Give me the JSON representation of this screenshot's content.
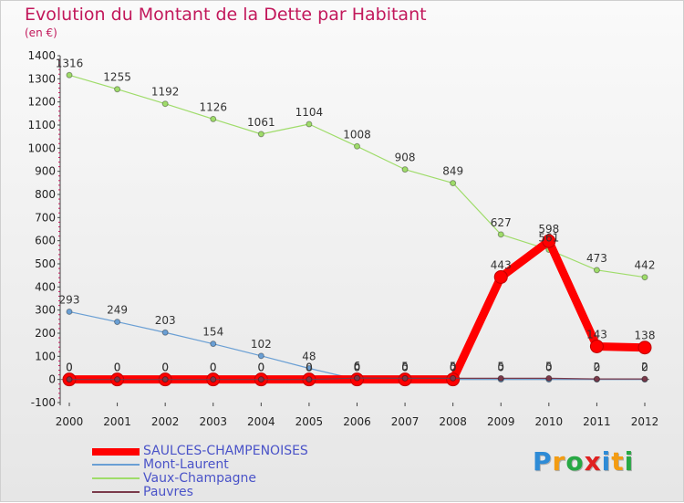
{
  "title": "Evolution du Montant de la Dette par Habitant",
  "subtitle": "(en €)",
  "logo": {
    "letters": [
      "P",
      "r",
      "o",
      "x",
      "i",
      "t",
      "i"
    ],
    "colors": [
      "#2e8bd6",
      "#f39c12",
      "#27a844",
      "#e02020",
      "#2e8bd6",
      "#f39c12",
      "#27a844"
    ]
  },
  "chart_data": {
    "type": "line",
    "x": [
      "2000",
      "2001",
      "2002",
      "2003",
      "2004",
      "2005",
      "2006",
      "2007",
      "2008",
      "2009",
      "2010",
      "2011",
      "2012"
    ],
    "y_ticks": [
      "-100",
      "0",
      "100",
      "200",
      "300",
      "400",
      "500",
      "600",
      "700",
      "800",
      "900",
      "1000",
      "1100",
      "1200",
      "1300",
      "1400"
    ],
    "ylim": [
      -100,
      1400
    ],
    "grid": false,
    "legend_position": "bottom-left",
    "series": [
      {
        "name": "SAULCES-CHAMPENOISES",
        "color": "#ff0000",
        "values": [
          0,
          0,
          0,
          0,
          0,
          0,
          0,
          0,
          0,
          443,
          598,
          143,
          138
        ],
        "labels": [
          "0",
          "0",
          "0",
          "0",
          "0",
          "0",
          "0",
          "0",
          "0",
          "443",
          "598",
          "143",
          "138"
        ]
      },
      {
        "name": "Mont-Laurent",
        "color": "#6a9fd4",
        "values": [
          293,
          249,
          203,
          154,
          102,
          48,
          0,
          0,
          0,
          0,
          0,
          0,
          0
        ],
        "labels": [
          "293",
          "249",
          "203",
          "154",
          "102",
          "48",
          "0",
          "0",
          "0",
          "0",
          "0",
          "0",
          "0"
        ]
      },
      {
        "name": "Vaux-Champagne",
        "color": "#9fdc6a",
        "values": [
          1316,
          1255,
          1192,
          1126,
          1061,
          1104,
          1008,
          908,
          849,
          627,
          561,
          473,
          442
        ],
        "labels": [
          "1316",
          "1255",
          "1192",
          "1126",
          "1061",
          "1104",
          "1008",
          "908",
          "849",
          "627",
          "561",
          "473",
          "442"
        ]
      },
      {
        "name": "Pauvres",
        "color": "#7a3a4a",
        "values": [
          0,
          0,
          0,
          0,
          0,
          0,
          6,
          5,
          5,
          5,
          5,
          2,
          2
        ],
        "labels": [
          "0",
          "0",
          "0",
          "0",
          "0",
          "0",
          "6",
          "5",
          "5",
          "5",
          "5",
          "2",
          "2"
        ]
      }
    ]
  }
}
